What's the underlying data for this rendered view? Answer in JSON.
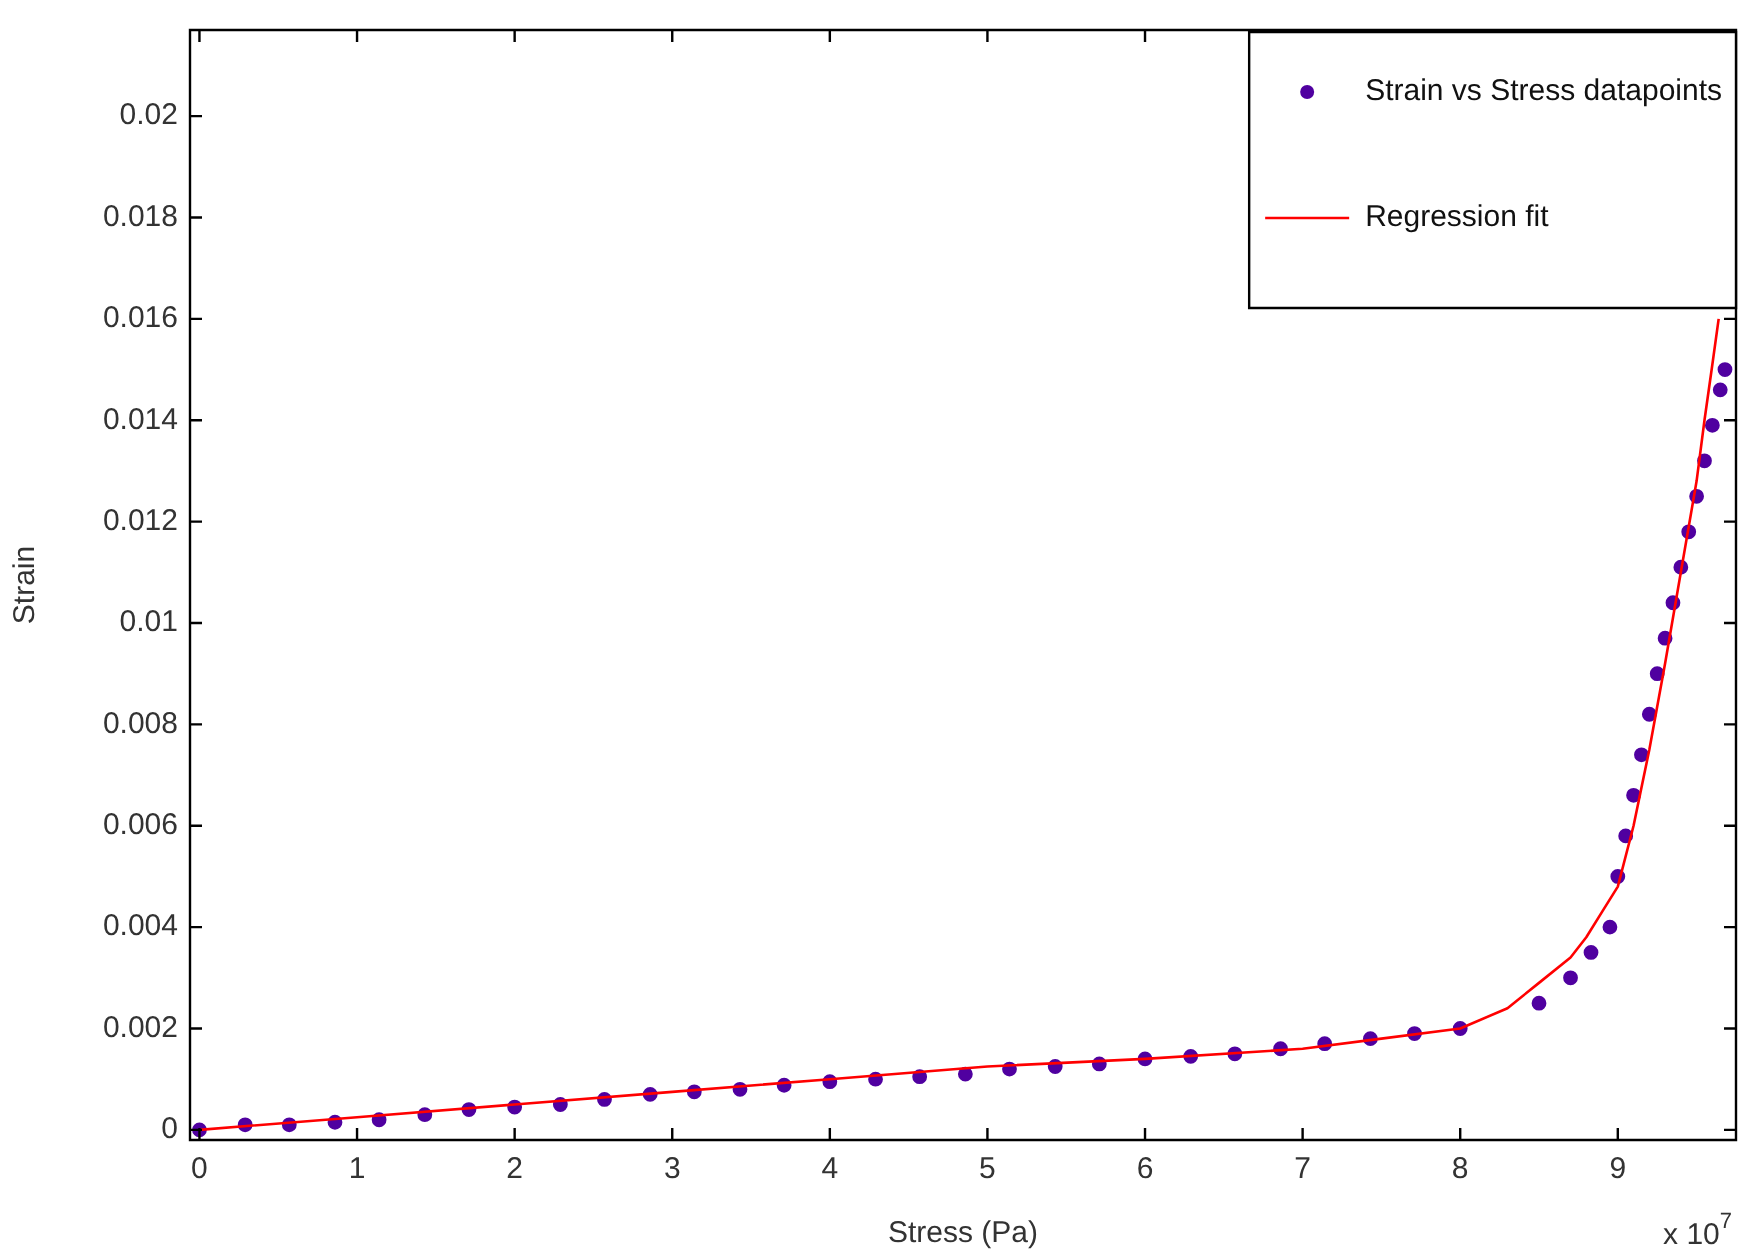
{
  "chart_data": {
    "type": "scatter",
    "xlabel": "Stress (Pa)",
    "ylabel": "Strain",
    "xlim": [
      -0.06,
      9.75
    ],
    "xticks": [
      0,
      1,
      2,
      3,
      4,
      5,
      6,
      7,
      8,
      9
    ],
    "ylim": [
      -0.0002,
      0.0217
    ],
    "yticks": [
      0,
      0.002,
      0.004,
      0.006,
      0.008,
      0.01,
      0.012,
      0.014,
      0.016,
      0.018,
      0.02
    ],
    "grid": false,
    "legend": "top right",
    "marker": "circle",
    "annotations": [
      "x 10$^{7}$"
    ],
    "series": [
      {
        "name": "Strain vs Stress datapoints",
        "type": "scatter",
        "color": "#5000a0",
        "x": [
          0,
          0.29,
          0.57,
          0.86,
          1.14,
          1.43,
          1.71,
          2.0,
          2.29,
          2.57,
          2.86,
          3.14,
          3.43,
          3.71,
          4.0,
          4.29,
          4.57,
          4.86,
          5.14,
          5.43,
          5.71,
          6.0,
          6.29,
          6.57,
          6.86,
          7.14,
          7.43,
          7.71,
          8.0,
          8.5,
          8.7,
          8.83,
          8.95,
          9.0,
          9.05,
          9.1,
          9.15,
          9.2,
          9.25,
          9.3,
          9.35,
          9.4,
          9.45,
          9.5,
          9.55,
          9.6,
          9.65,
          9.68
        ],
        "values": [
          0,
          0.0001,
          0.0001,
          0.00015,
          0.0002,
          0.0003,
          0.0004,
          0.00045,
          0.0005,
          0.0006,
          0.0007,
          0.00075,
          0.0008,
          0.00088,
          0.00095,
          0.001,
          0.00105,
          0.0011,
          0.0012,
          0.00125,
          0.0013,
          0.0014,
          0.00145,
          0.0015,
          0.0016,
          0.0017,
          0.0018,
          0.0019,
          0.002,
          0.0025,
          0.003,
          0.0035,
          0.004,
          0.005,
          0.0058,
          0.0066,
          0.0074,
          0.0082,
          0.009,
          0.0097,
          0.0104,
          0.0111,
          0.0118,
          0.0125,
          0.0132,
          0.0139,
          0.0146,
          0.015
        ]
      },
      {
        "name": "Regression fit",
        "type": "line",
        "color": "#ff0000",
        "marker": "none",
        "line_style": "solid",
        "x": [
          0,
          1,
          2,
          3,
          4,
          5,
          6,
          7,
          7.5,
          8,
          8.3,
          8.5,
          8.7,
          8.8,
          8.9,
          9.0,
          9.1,
          9.2,
          9.3,
          9.4,
          9.5,
          9.55,
          9.6,
          9.64
        ],
        "values": [
          0,
          0.00025,
          0.0005,
          0.00075,
          0.001,
          0.00125,
          0.0014,
          0.0016,
          0.0018,
          0.002,
          0.0024,
          0.0029,
          0.0034,
          0.0038,
          0.0043,
          0.0048,
          0.006,
          0.0075,
          0.0092,
          0.011,
          0.0128,
          0.014,
          0.0151,
          0.016
        ]
      }
    ]
  }
}
